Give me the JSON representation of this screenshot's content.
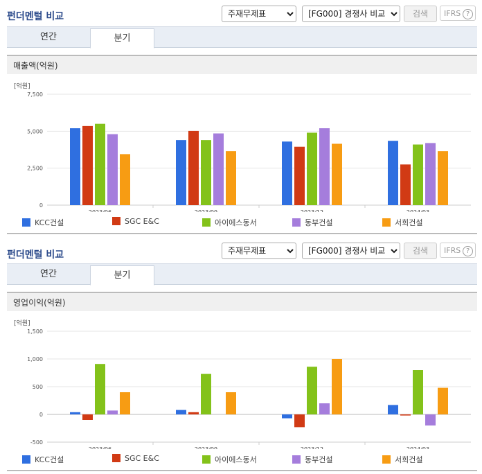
{
  "sections": [
    {
      "title": "펀더멘털 비교",
      "select_type": "주재무제표",
      "select_compare": "[FG000] 경쟁사 비교",
      "search_label": "검색",
      "ifrs_label": "IFRS",
      "ifrs_help": "?",
      "tabs": [
        "연간",
        "분기"
      ],
      "active_tab": "분기",
      "header": "매출액(억원)",
      "unit": "[억원]"
    },
    {
      "title": "펀더멘털 비교",
      "select_type": "주재무제표",
      "select_compare": "[FG000] 경쟁사 비교",
      "search_label": "검색",
      "ifrs_label": "IFRS",
      "ifrs_help": "?",
      "tabs": [
        "연간",
        "분기"
      ],
      "active_tab": "분기",
      "header": "영업이익(억원)",
      "unit": "[억원]"
    }
  ],
  "colors": [
    "#2f6fe0",
    "#d13a14",
    "#83c21a",
    "#a57ddc",
    "#f79c13"
  ],
  "chart_data": [
    {
      "type": "bar",
      "categories": [
        "2023/06",
        "2023/09",
        "2023/12",
        "2024/03"
      ],
      "series": [
        {
          "name": "KCC건설",
          "values": [
            5200,
            4400,
            4300,
            4350
          ]
        },
        {
          "name": "SGC E&C",
          "values": [
            5350,
            5020,
            3950,
            2750
          ]
        },
        {
          "name": "아이에스동서",
          "values": [
            5500,
            4400,
            4900,
            4100
          ]
        },
        {
          "name": "동부건설",
          "values": [
            4800,
            4850,
            5200,
            4200
          ]
        },
        {
          "name": "서희건설",
          "values": [
            3450,
            3650,
            4150,
            3650
          ]
        }
      ],
      "ylim": [
        0,
        7500
      ],
      "yticks": [
        0,
        2500,
        5000,
        7500
      ],
      "ytick_labels": [
        "0",
        "2,500",
        "5,000",
        "7,500"
      ],
      "grid": true,
      "legend": "bottom"
    },
    {
      "type": "bar",
      "categories": [
        "2023/06",
        "2023/09",
        "2023/12",
        "2024/03"
      ],
      "series": [
        {
          "name": "KCC건설",
          "values": [
            40,
            80,
            -70,
            170
          ]
        },
        {
          "name": "SGC E&C",
          "values": [
            -100,
            40,
            -230,
            -20
          ]
        },
        {
          "name": "아이에스동서",
          "values": [
            910,
            730,
            860,
            800
          ]
        },
        {
          "name": "동부건설",
          "values": [
            70,
            0,
            200,
            -200
          ]
        },
        {
          "name": "서희건설",
          "values": [
            400,
            400,
            1000,
            480
          ]
        }
      ],
      "ylim": [
        -500,
        1500
      ],
      "yticks": [
        -500,
        0,
        500,
        1000,
        1500
      ],
      "ytick_labels": [
        "-500",
        "0",
        "500",
        "1,000",
        "1,500"
      ],
      "grid": true,
      "legend": "bottom"
    }
  ]
}
